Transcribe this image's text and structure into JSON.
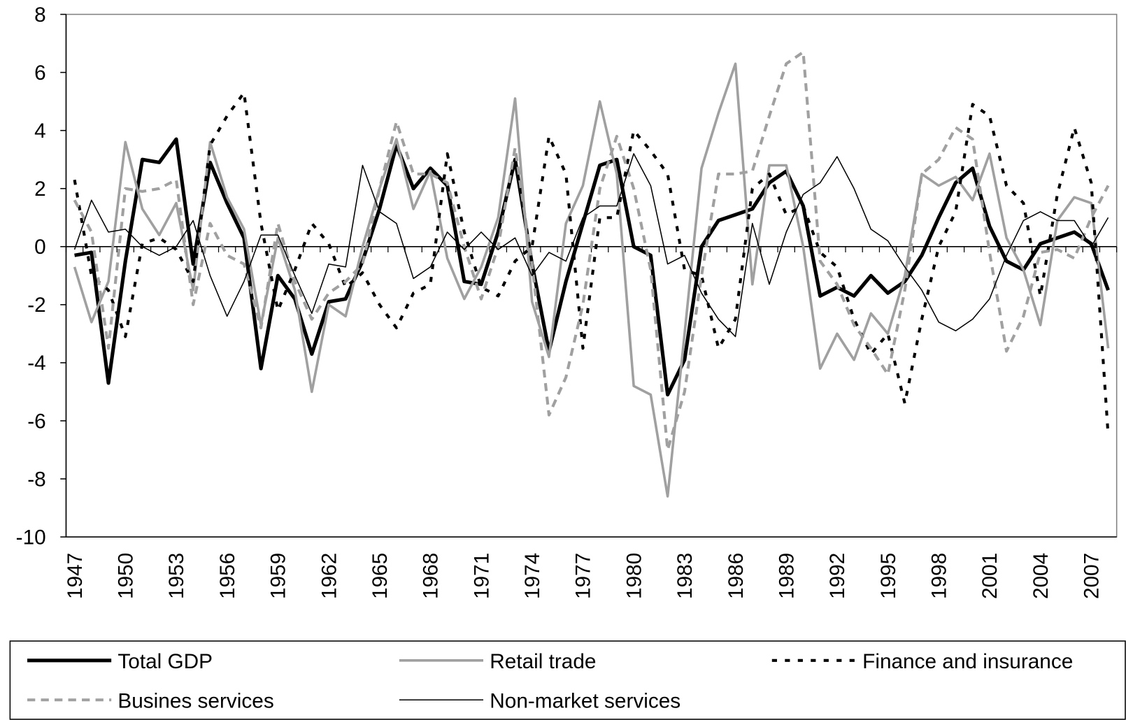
{
  "chart_data": {
    "type": "line",
    "categories": [
      "1947",
      null,
      null,
      "1950",
      null,
      null,
      "1953",
      null,
      null,
      "1956",
      null,
      null,
      "1959",
      null,
      null,
      "1962",
      null,
      null,
      "1965",
      null,
      null,
      "1968",
      null,
      null,
      "1971",
      null,
      null,
      "1974",
      null,
      null,
      "1977",
      null,
      null,
      "1980",
      null,
      null,
      "1983",
      null,
      null,
      "1986",
      null,
      null,
      "1989",
      null,
      null,
      "1992",
      null,
      null,
      "1995",
      null,
      null,
      "1998",
      null,
      null,
      "2001",
      null,
      null,
      "2004",
      null,
      null,
      "2007",
      null
    ],
    "ylim": [
      -10,
      8
    ],
    "yticks": [
      -10,
      -8,
      -6,
      -4,
      -2,
      0,
      2,
      4,
      6,
      8
    ],
    "series": [
      {
        "name": "Total GDP",
        "color": "#000000",
        "width": 5,
        "dash": "solid",
        "values": [
          -0.3,
          -0.2,
          -4.7,
          -0.5,
          3.0,
          2.9,
          3.7,
          -0.6,
          2.9,
          1.5,
          0.3,
          -4.2,
          -1.0,
          -1.8,
          -3.7,
          -1.9,
          -1.8,
          -0.5,
          1.3,
          3.5,
          2.0,
          2.7,
          2.1,
          -1.2,
          -1.3,
          0.5,
          3.0,
          -0.6,
          -3.6,
          -1.2,
          0.8,
          2.8,
          3.0,
          0.0,
          -0.3,
          -5.1,
          -3.9,
          0.0,
          0.9,
          1.1,
          1.3,
          2.2,
          2.6,
          1.4,
          -1.7,
          -1.4,
          -1.7,
          -1.0,
          -1.6,
          -1.2,
          -0.3,
          1.0,
          2.2,
          2.7,
          0.7,
          -0.5,
          -0.8,
          0.1,
          0.3,
          0.5,
          0.1,
          -1.5
        ]
      },
      {
        "name": "Retail trade",
        "color": "#a0a0a0",
        "width": 3.5,
        "dash": "solid",
        "values": [
          -0.7,
          -2.6,
          -1.2,
          3.6,
          1.3,
          0.4,
          1.5,
          -1.5,
          3.6,
          1.7,
          0.6,
          -2.7,
          0.3,
          -1.5,
          -5.0,
          -2.0,
          -2.4,
          0.0,
          2.0,
          3.7,
          1.3,
          2.6,
          -0.4,
          -1.8,
          -0.7,
          1.0,
          5.1,
          -1.9,
          -3.8,
          0.8,
          2.1,
          5.0,
          2.5,
          -4.8,
          -5.1,
          -8.6,
          -3.0,
          2.7,
          4.6,
          6.3,
          -1.3,
          2.8,
          2.8,
          0.0,
          -4.2,
          -3.0,
          -3.9,
          -2.3,
          -3.0,
          -1.0,
          2.5,
          2.1,
          2.4,
          1.6,
          3.2,
          0.3,
          -0.8,
          -2.7,
          0.9,
          1.7,
          1.5,
          -3.5
        ]
      },
      {
        "name": "Finance and insurance",
        "color": "#000000",
        "width": 4,
        "dash": "dashed",
        "values": [
          2.3,
          -1.0,
          -1.5,
          -3.1,
          0.1,
          0.3,
          -0.1,
          -1.2,
          3.5,
          4.5,
          5.3,
          0.8,
          -2.2,
          -0.8,
          0.8,
          0.1,
          -1.4,
          -0.9,
          -2.0,
          -2.8,
          -1.6,
          -1.3,
          3.2,
          0.5,
          -1.4,
          -1.7,
          -0.5,
          0.0,
          3.8,
          2.5,
          -3.5,
          1.0,
          1.0,
          4.0,
          3.3,
          2.5,
          -0.8,
          -1.0,
          -3.5,
          -2.5,
          2.0,
          2.5,
          1.1,
          1.4,
          -0.2,
          -0.7,
          -2.5,
          -3.7,
          -3.0,
          -5.4,
          -2.5,
          0.0,
          1.2,
          4.9,
          4.5,
          2.1,
          1.5,
          -1.7,
          1.8,
          4.1,
          2.2,
          -6.5
        ]
      },
      {
        "name": "Busines services",
        "color": "#a0a0a0",
        "width": 4,
        "dash": "dashed",
        "values": [
          1.6,
          0.5,
          -3.5,
          2.0,
          1.9,
          2.0,
          2.3,
          -2.0,
          0.8,
          -0.3,
          -0.6,
          -2.8,
          0.8,
          -1.2,
          -2.5,
          -1.6,
          -1.2,
          -0.6,
          2.0,
          4.3,
          2.5,
          2.5,
          2.2,
          0.0,
          -1.8,
          0.0,
          3.4,
          -0.6,
          -5.8,
          -4.5,
          -2.0,
          2.0,
          3.8,
          2.0,
          -0.8,
          -7.0,
          -5.0,
          -1.0,
          2.5,
          2.5,
          2.6,
          4.5,
          6.3,
          6.7,
          -0.5,
          -1.3,
          -2.7,
          -3.5,
          -4.4,
          -1.5,
          2.5,
          3.0,
          4.1,
          3.7,
          -0.2,
          -3.6,
          -2.4,
          -0.2,
          -0.1,
          -0.4,
          1.0,
          2.1
        ]
      },
      {
        "name": "Non-market services",
        "color": "#000000",
        "width": 1.5,
        "dash": "solid",
        "values": [
          -0.1,
          1.6,
          0.5,
          0.6,
          0.0,
          -0.3,
          0.0,
          0.9,
          -1.0,
          -2.4,
          -1.2,
          0.4,
          0.4,
          -1.0,
          -2.3,
          -0.6,
          -0.7,
          2.8,
          1.2,
          0.8,
          -1.1,
          -0.7,
          0.5,
          -0.1,
          0.5,
          -0.1,
          0.3,
          -1.0,
          -0.2,
          -0.5,
          1.0,
          1.4,
          1.4,
          3.2,
          2.1,
          -0.6,
          -0.3,
          -1.6,
          -2.5,
          -3.1,
          0.8,
          -1.3,
          0.5,
          1.8,
          2.2,
          3.1,
          2.0,
          0.6,
          0.2,
          -0.7,
          -1.5,
          -2.6,
          -2.9,
          -2.5,
          -1.8,
          -0.3,
          0.9,
          1.2,
          0.9,
          0.9,
          0.0,
          1.0
        ]
      }
    ],
    "legend": "bottom"
  }
}
